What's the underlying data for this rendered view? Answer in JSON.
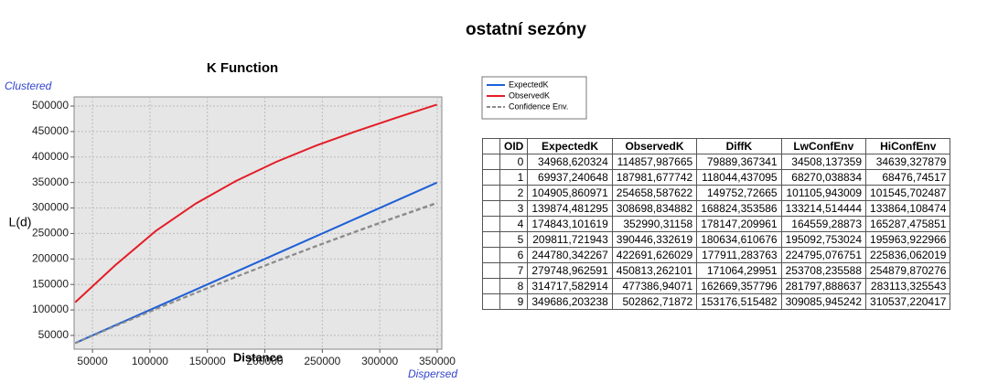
{
  "header": {
    "title": "ostatní sezóny"
  },
  "chart_data": {
    "type": "line",
    "title": "K Function",
    "xlabel": "Distance",
    "ylabel": "L(d)",
    "annotations": [
      "Clustered",
      "Dispersed"
    ],
    "x": [
      34968.620324,
      69937.240648,
      104905.860971,
      139874.481295,
      174843.101619,
      209811.721943,
      244780.342267,
      279748.962591,
      314717.582914,
      349686.203238
    ],
    "series": [
      {
        "name": "ExpectedK",
        "color": "#1f5fd6",
        "dash": false,
        "values": [
          34968.620324,
          69937.240648,
          104905.860971,
          139874.481295,
          174843.101619,
          209811.721943,
          244780.342267,
          279748.962591,
          314717.582914,
          349686.203238
        ]
      },
      {
        "name": "ObservedK",
        "color": "#e31d27",
        "dash": false,
        "values": [
          114857.987665,
          187981.677742,
          254658.587622,
          308698.834882,
          352990.31158,
          390446.332619,
          422691.626029,
          450813.262101,
          477386.94071,
          502862.71872
        ]
      },
      {
        "name": "Confidence Env.",
        "color": "#8c8c8c",
        "dash": true,
        "values": [
          34508.137359,
          68270.038834,
          101105.943009,
          133214.514444,
          164559.28873,
          195092.753024,
          224795.076751,
          253708.235588,
          281797.888637,
          309085.945242
        ],
        "high": [
          34639.327879,
          68476.74517,
          101545.702487,
          133864.108474,
          165287.475851,
          195963.922966,
          225836.062019,
          254879.870276,
          283113.325543,
          310537.220417
        ]
      }
    ],
    "xlim": [
      34000,
      354000
    ],
    "xticks": [
      50000,
      100000,
      150000,
      200000,
      250000,
      300000,
      350000
    ],
    "ylim": [
      23000,
      518000
    ],
    "yticks": [
      50000,
      100000,
      150000,
      200000,
      250000,
      300000,
      350000,
      400000,
      450000,
      500000
    ],
    "grid": true
  },
  "table": {
    "columns": [
      "OID",
      "ExpectedK",
      "ObservedK",
      "DiffK",
      "LwConfEnv",
      "HiConfEnv"
    ],
    "rows": [
      [
        "0",
        "34968,620324",
        "114857,987665",
        "79889,367341",
        "34508,137359",
        "34639,327879"
      ],
      [
        "1",
        "69937,240648",
        "187981,677742",
        "118044,437095",
        "68270,038834",
        "68476,74517"
      ],
      [
        "2",
        "104905,860971",
        "254658,587622",
        "149752,72665",
        "101105,943009",
        "101545,702487"
      ],
      [
        "3",
        "139874,481295",
        "308698,834882",
        "168824,353586",
        "133214,514444",
        "133864,108474"
      ],
      [
        "4",
        "174843,101619",
        "352990,31158",
        "178147,209961",
        "164559,28873",
        "165287,475851"
      ],
      [
        "5",
        "209811,721943",
        "390446,332619",
        "180634,610676",
        "195092,753024",
        "195963,922966"
      ],
      [
        "6",
        "244780,342267",
        "422691,626029",
        "177911,283763",
        "224795,076751",
        "225836,062019"
      ],
      [
        "7",
        "279748,962591",
        "450813,262101",
        "171064,29951",
        "253708,235588",
        "254879,870276"
      ],
      [
        "8",
        "314717,582914",
        "477386,94071",
        "162669,357796",
        "281797,888637",
        "283113,325543"
      ],
      [
        "9",
        "349686,203238",
        "502862,71872",
        "153176,515482",
        "309085,945242",
        "310537,220417"
      ]
    ]
  }
}
